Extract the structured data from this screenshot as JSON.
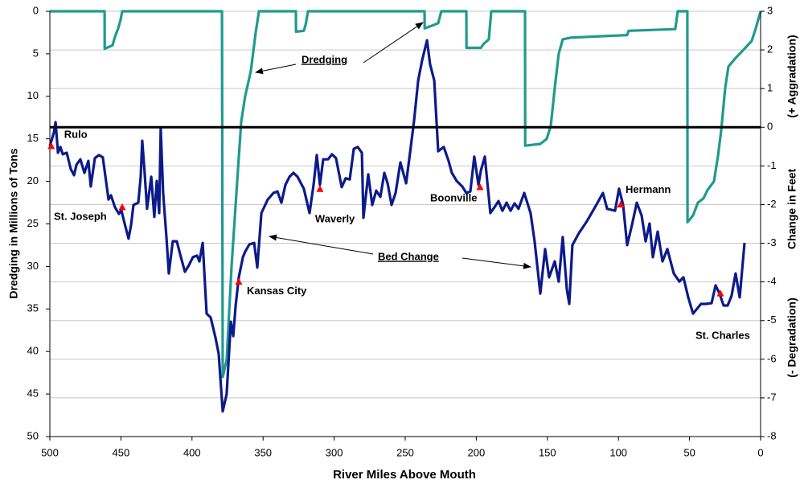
{
  "chart_data": {
    "type": "line",
    "xlabel": "River Miles Above Mouth",
    "ylabel": "Dredging in Millions of Tons",
    "y2label": [
      "Change in Feet",
      "(+ Aggradation)",
      "(- Degradation)"
    ],
    "xlim": [
      500,
      0
    ],
    "xticks": [
      500,
      450,
      400,
      350,
      300,
      250,
      200,
      150,
      100,
      50,
      0
    ],
    "ylim": [
      0,
      50
    ],
    "y_inverted": true,
    "yticks": [
      0,
      5,
      10,
      15,
      20,
      25,
      30,
      35,
      40,
      45,
      50
    ],
    "y2lim": [
      -8,
      3
    ],
    "y2ticks": [
      3,
      2,
      1,
      0,
      -1,
      -2,
      -3,
      -4,
      -5,
      -6,
      -7,
      -8
    ],
    "grid": true,
    "zero_line_y2": true,
    "series": [
      {
        "name": "Dredging",
        "color": "#1f9a8e",
        "axis": "y",
        "x": [
          500,
          461.5,
          461.4,
          455.9,
          454.2,
          451.9,
          450.2,
          449.1,
          378.9,
          378.4,
          375.6,
          372.2,
          368.2,
          365.4,
          362.6,
          358.6,
          355.2,
          352.9,
          326.9,
          326.8,
          321.3,
          320.1,
          318.4,
          236.4,
          236.3,
          229.6,
          226.8,
          224.6,
          207.0,
          206.9,
          196.8,
          194.6,
          191.2,
          189.5,
          165.7,
          165.6,
          154.9,
          150.5,
          147.6,
          144.8,
          142.0,
          139.2,
          133.5,
          93.9,
          92.8,
          60.0,
          58.3,
          51.5,
          51.4,
          47.5,
          44.1,
          40.2,
          37.3,
          32.8,
          30.0,
          27.7,
          24.9,
          22.6,
          17.6,
          11.9,
          6.3,
          3.4,
          0
        ],
        "values": [
          0,
          0,
          4.4,
          4.0,
          3.0,
          2.0,
          1.0,
          0,
          0,
          43.0,
          41,
          30,
          20,
          13,
          10,
          7,
          2.5,
          0,
          0,
          2.4,
          2.3,
          1.6,
          0,
          0,
          2.0,
          1.6,
          1.4,
          0,
          0,
          4.3,
          4.3,
          3.8,
          3.3,
          0,
          0,
          15.8,
          15.6,
          15.0,
          13.5,
          9,
          5,
          3.3,
          3.1,
          2.8,
          2.3,
          2.1,
          0,
          0,
          24.8,
          24,
          22.5,
          22,
          21,
          20,
          17,
          14,
          9,
          6.5,
          5.5,
          4.5,
          3.5,
          2,
          0
        ]
      },
      {
        "name": "Bed Change",
        "color": "#0c1a8a",
        "axis": "y2",
        "x": [
          500,
          497.2,
          496.0,
          494.3,
          492.6,
          490.9,
          488.1,
          485.3,
          483.0,
          481.3,
          478.5,
          475.7,
          472.9,
          471.2,
          468.3,
          465.5,
          462.7,
          458.7,
          457.0,
          454.2,
          451.4,
          449.7,
          447.4,
          444.6,
          442.9,
          441.2,
          437.8,
          436.1,
          435.0,
          433.3,
          431.6,
          428.7,
          426.5,
          424.8,
          423.1,
          422.0,
          420.3,
          418.0,
          416.3,
          413.5,
          410.7,
          407.8,
          405.0,
          402.2,
          399.4,
          396.5,
          394.8,
          392.5,
          389.7,
          386.9,
          383.5,
          381.2,
          378.4,
          375.6,
          372.7,
          371.0,
          369.3,
          367.1,
          364.2,
          362.6,
          359.7,
          356.3,
          354.1,
          351.2,
          346.7,
          342.7,
          339.9,
          337.1,
          334.3,
          331.4,
          328.6,
          325.8,
          321.3,
          317.3,
          314.5,
          312.2,
          310.0,
          307.7,
          304.3,
          301.5,
          298.7,
          294.7,
          291.9,
          289.0,
          286.2,
          283.4,
          280.5,
          279.4,
          276.0,
          273.2,
          270.4,
          267.5,
          264.7,
          262.4,
          259.6,
          256.8,
          253.4,
          249.4,
          246.6,
          243.8,
          240.9,
          238.1,
          234.7,
          232.5,
          229.6,
          226.8,
          222.9,
          219.5,
          217.2,
          213.8,
          209.9,
          207.0,
          204.2,
          201.4,
          198.5,
          196.8,
          194.0,
          190.1,
          187.2,
          184.4,
          181.6,
          178.7,
          175.9,
          173.1,
          170.3,
          166.3,
          161.8,
          159.0,
          155.0,
          151.6,
          148.8,
          144.8,
          142.0,
          139.2,
          136.3,
          134.6,
          132.4,
          127.8,
          122.2,
          116.5,
          110.9,
          108.0,
          102.4,
          99.6,
          96.7,
          93.9,
          90.5,
          87.1,
          83.7,
          80.9,
          78.1,
          75.8,
          72.4,
          69.0,
          65.6,
          61.1,
          57.1,
          54.3,
          50.9,
          47.5,
          45.3,
          41.9,
          38.5,
          34.5,
          31.7,
          28.9,
          26.0,
          23.2,
          20.4,
          17.6,
          14.7,
          11.3
        ],
        "values": [
          -0.49,
          -0.14,
          0.13,
          -0.66,
          -0.51,
          -0.7,
          -0.66,
          -1.08,
          -1.24,
          -0.97,
          -0.83,
          -1.18,
          -0.87,
          -1.53,
          -0.8,
          -0.72,
          -0.78,
          -1.87,
          -1.76,
          -2.07,
          -2.24,
          -2.14,
          -2.49,
          -2.88,
          -2.53,
          -2.01,
          -1.95,
          -1.28,
          -0.35,
          -1.18,
          -2.11,
          -1.28,
          -2.32,
          -1.39,
          -2.22,
          -0.04,
          -1.7,
          -2.84,
          -3.78,
          -2.95,
          -2.95,
          -3.36,
          -3.74,
          -3.57,
          -3.36,
          -3.32,
          -3.47,
          -2.99,
          -4.82,
          -4.92,
          -5.44,
          -5.86,
          -7.35,
          -6.9,
          -5.03,
          -5.4,
          -4.61,
          -3.88,
          -3.36,
          -3.22,
          -3.03,
          -2.99,
          -3.63,
          -2.22,
          -1.87,
          -1.7,
          -1.66,
          -1.95,
          -1.49,
          -1.28,
          -1.18,
          -1.28,
          -1.59,
          -2.22,
          -1.49,
          -0.72,
          -1.49,
          -0.83,
          -0.83,
          -0.7,
          -0.8,
          -1.55,
          -1.32,
          -1.35,
          -0.56,
          -0.51,
          -0.66,
          -2.34,
          -1.22,
          -2.01,
          -1.64,
          -1.8,
          -1.18,
          -1.45,
          -2.01,
          -1.7,
          -0.91,
          -1.45,
          -0.66,
          0.17,
          1.21,
          1.73,
          2.25,
          1.63,
          1.21,
          -0.62,
          -0.51,
          -0.87,
          -1.18,
          -1.39,
          -1.53,
          -1.7,
          -1.66,
          -0.76,
          -1.49,
          -1.12,
          -0.76,
          -2.22,
          -2.07,
          -1.91,
          -2.16,
          -1.95,
          -2.16,
          -1.97,
          -2.11,
          -1.7,
          -2.22,
          -2.95,
          -4.3,
          -3.15,
          -3.88,
          -3.47,
          -3.99,
          -2.84,
          -4.19,
          -4.57,
          -3.05,
          -2.74,
          -2.43,
          -2.07,
          -1.7,
          -2.11,
          -2.16,
          -1.59,
          -2.01,
          -3.05,
          -2.53,
          -1.95,
          -2.28,
          -2.95,
          -2.49,
          -3.36,
          -2.7,
          -3.47,
          -3.15,
          -3.78,
          -3.99,
          -3.88,
          -4.4,
          -4.82,
          -4.72,
          -4.57,
          -4.57,
          -4.55,
          -4.09,
          -4.3,
          -4.61,
          -4.61,
          -4.36,
          -3.78,
          -4.4,
          -2.99
        ]
      }
    ],
    "annotations": [
      {
        "text": "Rulo",
        "x": 499,
        "y": -0.49
      },
      {
        "text": "St. Joseph",
        "x": 449.1,
        "y": -2.07
      },
      {
        "text": "Kansas City",
        "x": 367.1,
        "y": -4.0
      },
      {
        "text": "Waverly",
        "x": 310,
        "y": -1.6
      },
      {
        "text": "Boonville",
        "x": 197.4,
        "y": -1.55
      },
      {
        "text": "Hermann",
        "x": 98.4,
        "y": -2.0
      },
      {
        "text": "St. Charles",
        "x": 28.3,
        "y": -4.3
      }
    ],
    "marker_color": "#ff0000"
  }
}
